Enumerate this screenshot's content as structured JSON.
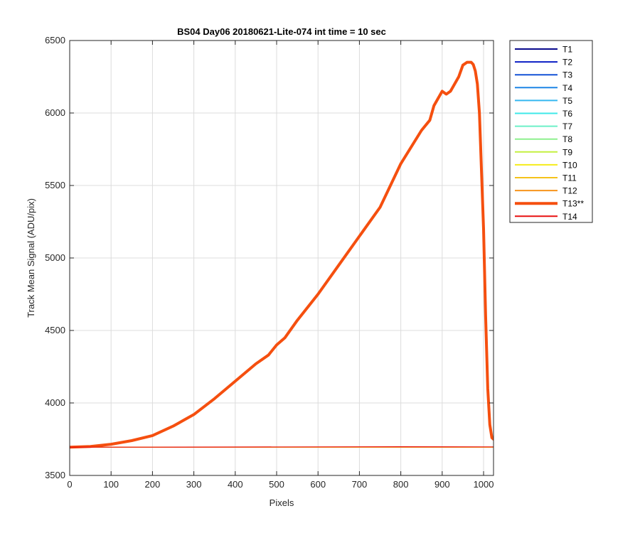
{
  "chart_data": {
    "type": "line",
    "title": "BS04 Day06 20180621-Lite-074 int time = 10 sec",
    "xlabel": "Pixels",
    "ylabel": "Track Mean Signal (ADU/pix)",
    "xlim": [
      0,
      1024
    ],
    "ylim": [
      3500,
      6500
    ],
    "xticks": [
      0,
      100,
      200,
      300,
      400,
      500,
      600,
      700,
      800,
      900,
      1000
    ],
    "yticks": [
      3500,
      4000,
      4500,
      5000,
      5500,
      6000,
      6500
    ],
    "grid": true,
    "legend_position": "outside-right",
    "series": [
      {
        "name": "T1",
        "color": "#0a0a8c"
      },
      {
        "name": "T2",
        "color": "#0b1fc4"
      },
      {
        "name": "T3",
        "color": "#1452d6"
      },
      {
        "name": "T4",
        "color": "#1f86e6"
      },
      {
        "name": "T5",
        "color": "#36b8f0"
      },
      {
        "name": "T6",
        "color": "#3ee8e8"
      },
      {
        "name": "T7",
        "color": "#6cf0c8"
      },
      {
        "name": "T8",
        "color": "#8ef08e"
      },
      {
        "name": "T9",
        "color": "#c4f040"
      },
      {
        "name": "T10",
        "color": "#f5ec1a"
      },
      {
        "name": "T11",
        "color": "#f5c21a"
      },
      {
        "name": "T12",
        "color": "#f7941d"
      },
      {
        "name": "T13**",
        "color": "#f54f0f",
        "highlight": true,
        "x": [
          0,
          50,
          100,
          150,
          200,
          250,
          300,
          350,
          400,
          450,
          480,
          500,
          520,
          550,
          600,
          650,
          700,
          750,
          800,
          850,
          870,
          880,
          900,
          910,
          920,
          940,
          950,
          960,
          965,
          970,
          975,
          980,
          985,
          990,
          1000,
          1005,
          1010,
          1015,
          1020,
          1024
        ],
        "y": [
          3695,
          3700,
          3715,
          3740,
          3775,
          3840,
          3920,
          4030,
          4150,
          4270,
          4330,
          4400,
          4450,
          4570,
          4750,
          4950,
          5150,
          5350,
          5650,
          5880,
          5950,
          6050,
          6150,
          6130,
          6150,
          6250,
          6330,
          6350,
          6350,
          6350,
          6335,
          6290,
          6200,
          6000,
          5200,
          4600,
          4100,
          3850,
          3760,
          3750
        ]
      },
      {
        "name": "T14",
        "color": "#e81010",
        "x": [
          0,
          200,
          400,
          600,
          800,
          1000,
          1024
        ],
        "y": [
          3695,
          3695,
          3696,
          3697,
          3698,
          3697,
          3697
        ]
      }
    ],
    "baseline_level": 3695
  }
}
